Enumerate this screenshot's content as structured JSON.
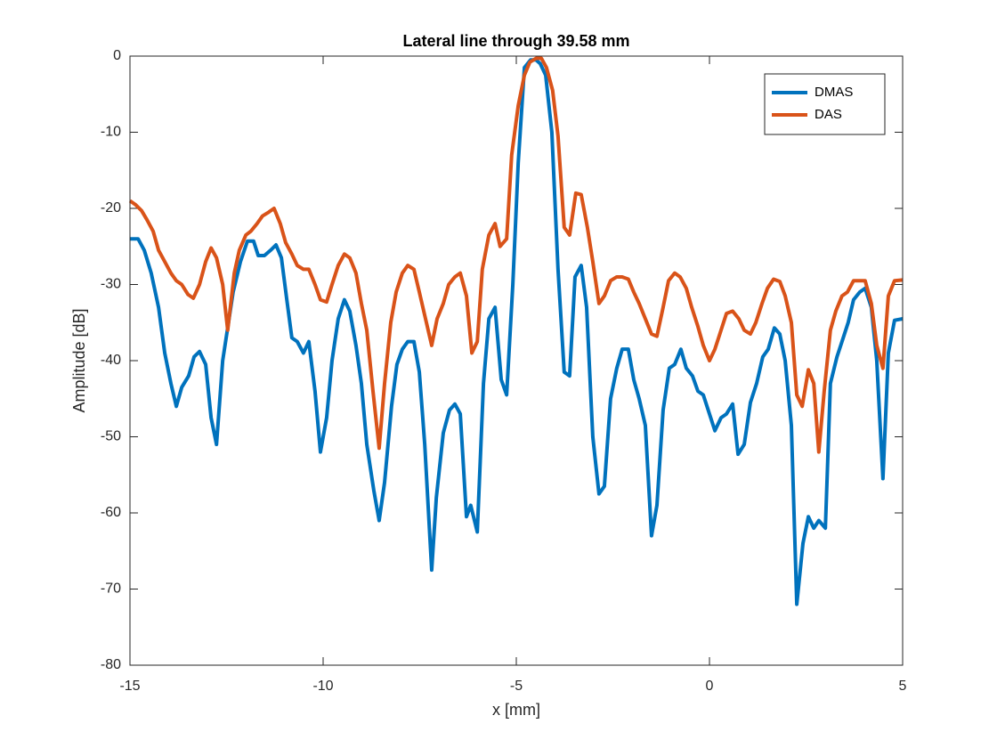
{
  "chart_data": {
    "type": "line",
    "title": "Lateral line through 39.58 mm",
    "x_label": "x [mm]",
    "y_label": "Amplitude [dB]",
    "xlim": [
      -15,
      5
    ],
    "ylim": [
      -80,
      0
    ],
    "xticks": [
      -15,
      -10,
      -5,
      0,
      5
    ],
    "yticks": [
      -80,
      -70,
      -60,
      -50,
      -40,
      -30,
      -20,
      -10,
      0
    ],
    "grid": false,
    "legend_position": "northeast",
    "series": [
      {
        "name": "DMAS",
        "color": "#0072BD",
        "x": [
          -15.0,
          -14.79,
          -14.63,
          -14.45,
          -14.26,
          -14.1,
          -13.94,
          -13.8,
          -13.66,
          -13.48,
          -13.34,
          -13.2,
          -13.04,
          -12.9,
          -12.76,
          -12.6,
          -12.33,
          -12.14,
          -11.96,
          -11.8,
          -11.68,
          -11.52,
          -11.36,
          -11.22,
          -11.08,
          -10.94,
          -10.81,
          -10.67,
          -10.51,
          -10.37,
          -10.21,
          -10.07,
          -9.91,
          -9.77,
          -9.61,
          -9.45,
          -9.31,
          -9.15,
          -9.01,
          -8.87,
          -8.69,
          -8.55,
          -8.41,
          -8.23,
          -8.09,
          -7.95,
          -7.81,
          -7.65,
          -7.51,
          -7.37,
          -7.19,
          -7.07,
          -6.89,
          -6.73,
          -6.59,
          -6.45,
          -6.29,
          -6.18,
          -6.01,
          -5.85,
          -5.71,
          -5.55,
          -5.39,
          -5.25,
          -5.09,
          -4.95,
          -4.79,
          -4.63,
          -4.49,
          -4.38,
          -4.24,
          -4.08,
          -3.92,
          -3.76,
          -3.62,
          -3.48,
          -3.32,
          -3.18,
          -3.02,
          -2.86,
          -2.72,
          -2.56,
          -2.4,
          -2.26,
          -2.1,
          -1.96,
          -1.82,
          -1.66,
          -1.5,
          -1.36,
          -1.2,
          -1.04,
          -0.9,
          -0.74,
          -0.6,
          -0.44,
          -0.3,
          -0.16,
          0.0,
          0.14,
          0.3,
          0.44,
          0.6,
          0.74,
          0.9,
          1.06,
          1.22,
          1.38,
          1.52,
          1.68,
          1.82,
          1.96,
          2.12,
          2.26,
          2.42,
          2.56,
          2.7,
          2.83,
          3.0,
          3.13,
          3.3,
          3.43,
          3.59,
          3.73,
          3.89,
          4.03,
          4.19,
          4.33,
          4.49,
          4.63,
          4.79,
          5.0
        ],
        "values": [
          -24,
          -24,
          -25.5,
          -28.5,
          -33,
          -39,
          -43,
          -46,
          -43.5,
          -42,
          -39.5,
          -38.8,
          -40.5,
          -47.5,
          -51,
          -40,
          -31,
          -27,
          -24.3,
          -24.3,
          -26.2,
          -26.2,
          -25.5,
          -24.8,
          -26.5,
          -32,
          -37,
          -37.5,
          -39,
          -37.5,
          -44,
          -52,
          -47.5,
          -40,
          -34.5,
          -32,
          -33.5,
          -38,
          -43,
          -51,
          -57,
          -61,
          -56,
          -46,
          -40.5,
          -38.5,
          -37.5,
          -37.5,
          -41.5,
          -51,
          -67.5,
          -58,
          -49.5,
          -46.5,
          -45.7,
          -47,
          -60.5,
          -59,
          -62.5,
          -43,
          -34.5,
          -33,
          -42.5,
          -44.5,
          -30,
          -14,
          -1.5,
          -0.5,
          -0.5,
          -1,
          -2.5,
          -10,
          -28,
          -41.5,
          -42,
          -29,
          -27.5,
          -33,
          -50,
          -57.5,
          -56.5,
          -45,
          -41,
          -38.5,
          -38.5,
          -42.5,
          -45,
          -48.5,
          -63,
          -59,
          -46.5,
          -41,
          -40.5,
          -38.5,
          -41,
          -42,
          -44,
          -44.5,
          -47,
          -49.2,
          -47.5,
          -47,
          -45.7,
          -52.3,
          -51,
          -45.5,
          -43,
          -39.5,
          -38.5,
          -35.7,
          -36.5,
          -40,
          -48.5,
          -72,
          -64,
          -60.5,
          -62,
          -61,
          -62,
          -43,
          -39.5,
          -37.5,
          -35,
          -32,
          -31,
          -30.5,
          -33,
          -40,
          -55.5,
          -39,
          -34.7,
          -34.5
        ]
      },
      {
        "name": "DAS",
        "color": "#D95319",
        "x": [
          -15.0,
          -14.86,
          -14.7,
          -14.56,
          -14.4,
          -14.26,
          -14.1,
          -13.94,
          -13.8,
          -13.66,
          -13.5,
          -13.36,
          -13.2,
          -13.04,
          -12.9,
          -12.76,
          -12.6,
          -12.47,
          -12.3,
          -12.17,
          -12.0,
          -11.87,
          -11.71,
          -11.57,
          -11.41,
          -11.27,
          -11.11,
          -10.97,
          -10.81,
          -10.67,
          -10.51,
          -10.37,
          -10.21,
          -10.07,
          -9.91,
          -9.77,
          -9.61,
          -9.45,
          -9.31,
          -9.15,
          -9.01,
          -8.87,
          -8.71,
          -8.55,
          -8.41,
          -8.25,
          -8.11,
          -7.95,
          -7.81,
          -7.65,
          -7.51,
          -7.35,
          -7.19,
          -7.05,
          -6.89,
          -6.75,
          -6.59,
          -6.45,
          -6.29,
          -6.15,
          -6.01,
          -5.88,
          -5.71,
          -5.55,
          -5.42,
          -5.25,
          -5.12,
          -4.95,
          -4.79,
          -4.65,
          -4.49,
          -4.35,
          -4.22,
          -4.06,
          -3.92,
          -3.76,
          -3.62,
          -3.46,
          -3.32,
          -3.16,
          -3.02,
          -2.86,
          -2.72,
          -2.56,
          -2.4,
          -2.26,
          -2.1,
          -1.96,
          -1.82,
          -1.66,
          -1.5,
          -1.36,
          -1.2,
          -1.06,
          -0.9,
          -0.76,
          -0.6,
          -0.46,
          -0.3,
          -0.16,
          0.0,
          0.14,
          0.3,
          0.44,
          0.6,
          0.76,
          0.9,
          1.06,
          1.2,
          1.36,
          1.5,
          1.66,
          1.82,
          1.96,
          2.12,
          2.26,
          2.4,
          2.56,
          2.7,
          2.83,
          2.97,
          3.13,
          3.27,
          3.43,
          3.57,
          3.73,
          3.89,
          4.03,
          4.19,
          4.33,
          4.49,
          4.63,
          4.79,
          5.0
        ],
        "values": [
          -19,
          -19.5,
          -20.3,
          -21.5,
          -23,
          -25.5,
          -27,
          -28.5,
          -29.5,
          -30,
          -31.3,
          -31.8,
          -30,
          -27,
          -25.2,
          -26.5,
          -30,
          -36,
          -28.5,
          -25.5,
          -23.5,
          -23,
          -22,
          -21,
          -20.5,
          -20,
          -22,
          -24.5,
          -26,
          -27.5,
          -28,
          -28,
          -30,
          -32,
          -32.3,
          -30,
          -27.5,
          -26,
          -26.5,
          -28.5,
          -32.5,
          -36,
          -44,
          -51.5,
          -43,
          -35,
          -31,
          -28.5,
          -27.5,
          -28,
          -31,
          -34.5,
          -38,
          -34.5,
          -32.5,
          -30,
          -29,
          -28.5,
          -31.5,
          -39,
          -37.5,
          -28,
          -23.5,
          -22,
          -25,
          -24,
          -13,
          -6.5,
          -2.5,
          -0.8,
          -0.3,
          -0.3,
          -1.5,
          -4.5,
          -10.5,
          -22.5,
          -23.5,
          -18,
          -18.2,
          -22.5,
          -27,
          -32.5,
          -31.5,
          -29.5,
          -29,
          -29,
          -29.3,
          -31,
          -32.5,
          -34.5,
          -36.5,
          -36.8,
          -33,
          -29.5,
          -28.5,
          -29,
          -30.5,
          -33,
          -35.5,
          -38,
          -40,
          -38.5,
          -36,
          -33.8,
          -33.5,
          -34.5,
          -36,
          -36.5,
          -35,
          -32.5,
          -30.5,
          -29.3,
          -29.6,
          -31.5,
          -35,
          -44.5,
          -46,
          -41.2,
          -43,
          -52,
          -44,
          -36,
          -33.5,
          -31.5,
          -31,
          -29.5,
          -29.5,
          -29.5,
          -32.5,
          -38,
          -41,
          -31.5,
          -29.5,
          -29.4
        ]
      }
    ]
  }
}
